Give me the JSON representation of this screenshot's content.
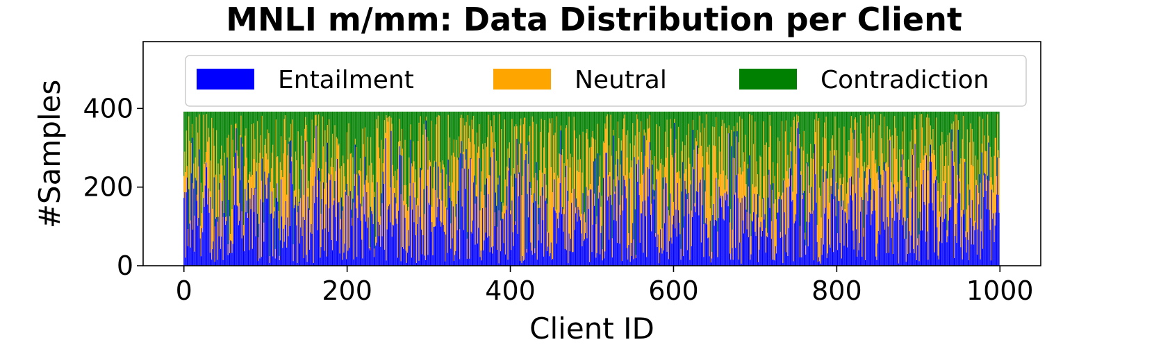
{
  "chart_data": {
    "type": "bar",
    "stacked": true,
    "title": "MNLI m/mm: Data Distribution per Client",
    "xlabel": "Client ID",
    "ylabel": "#Samples",
    "xlim": [
      -50,
      1050
    ],
    "ylim": [
      0,
      570
    ],
    "xticks": [
      0,
      200,
      400,
      600,
      800,
      1000
    ],
    "yticks": [
      0,
      200,
      400
    ],
    "num_clients": 1000,
    "samples_per_client": 392,
    "grid": false,
    "legend": {
      "placement": "top",
      "ncol": 3
    },
    "series": [
      {
        "name": "Entailment",
        "color": "#0000ff",
        "mean_samples_per_client": 130
      },
      {
        "name": "Neutral",
        "color": "#ffa500",
        "mean_samples_per_client": 131
      },
      {
        "name": "Contradiction",
        "color": "#008000",
        "mean_samples_per_client": 131
      }
    ]
  }
}
